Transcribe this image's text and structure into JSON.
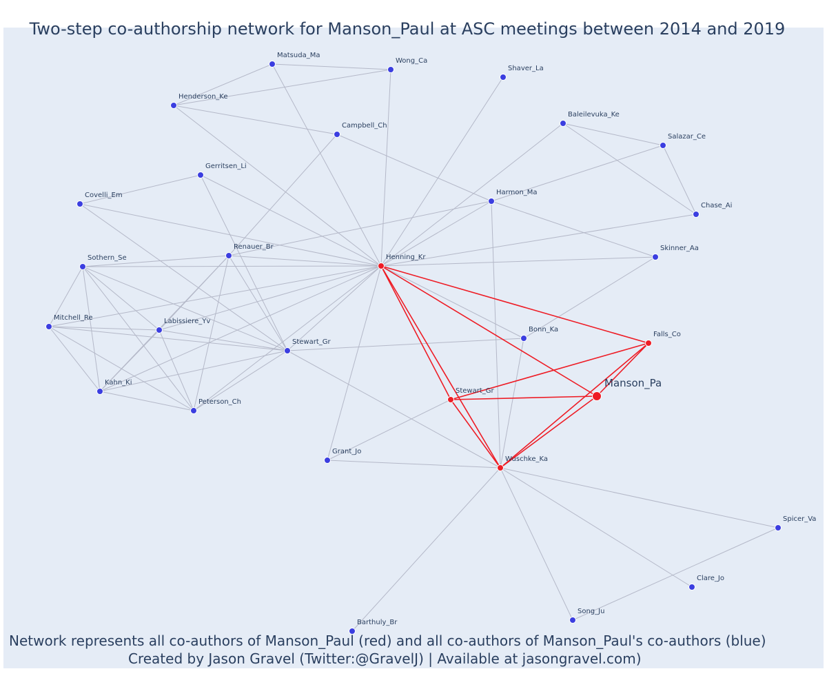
{
  "title": "Two-step co-authorship network for Manson_Paul at ASC meetings between 2014 and 2019",
  "footer": {
    "line1": "Network represents all co-authors of Manson_Paul (red) and all co-authors of Manson_Paul's co-authors (blue)",
    "line2": "Created by Jason Gravel (Twitter:@GravelJ) | Available at jasongravel.com)"
  },
  "colors": {
    "background": "#e5ecf6",
    "coauthor_node": "#ee1c25",
    "second_step_node": "#3b3ee0",
    "coauthor_edge": "#ee1c25",
    "other_edge": "#b4b8c8",
    "text": "#2a3f5f"
  },
  "nodes": [
    {
      "id": "manson",
      "label": "Manson_Pa",
      "group": "focal"
    },
    {
      "id": "henning",
      "label": "Henning_Kr",
      "group": "coauthor"
    },
    {
      "id": "falls",
      "label": "Falls_Co",
      "group": "coauthor"
    },
    {
      "id": "stewart_r",
      "label": "Stewart_Gr",
      "group": "coauthor"
    },
    {
      "id": "wuschke",
      "label": "Wuschke_Ka",
      "group": "coauthor"
    },
    {
      "id": "matsuda",
      "label": "Matsuda_Ma",
      "group": "second"
    },
    {
      "id": "wong",
      "label": "Wong_Ca",
      "group": "second"
    },
    {
      "id": "shaver",
      "label": "Shaver_La",
      "group": "second"
    },
    {
      "id": "henderson",
      "label": "Henderson_Ke",
      "group": "second"
    },
    {
      "id": "campbell",
      "label": "Campbell_Ch",
      "group": "second"
    },
    {
      "id": "baleilevuka",
      "label": "Baleilevuka_Ke",
      "group": "second"
    },
    {
      "id": "salazar",
      "label": "Salazar_Ce",
      "group": "second"
    },
    {
      "id": "gerritsen",
      "label": "Gerritsen_Li",
      "group": "second"
    },
    {
      "id": "covelli",
      "label": "Covelli_Em",
      "group": "second"
    },
    {
      "id": "harmon",
      "label": "Harmon_Ma",
      "group": "second"
    },
    {
      "id": "chase",
      "label": "Chase_Ai",
      "group": "second"
    },
    {
      "id": "renauer",
      "label": "Renauer_Br",
      "group": "second"
    },
    {
      "id": "sothern",
      "label": "Sothern_Se",
      "group": "second"
    },
    {
      "id": "skinner",
      "label": "Skinner_Aa",
      "group": "second"
    },
    {
      "id": "mitchell",
      "label": "Mitchell_Re",
      "group": "second"
    },
    {
      "id": "labissiere",
      "label": "Labissiere_Yv",
      "group": "second"
    },
    {
      "id": "stewart_b",
      "label": "Stewart_Gr",
      "group": "second"
    },
    {
      "id": "bonn",
      "label": "Bonn_Ka",
      "group": "second"
    },
    {
      "id": "kahn",
      "label": "Kahn_Ki",
      "group": "second"
    },
    {
      "id": "peterson",
      "label": "Peterson_Ch",
      "group": "second"
    },
    {
      "id": "grant",
      "label": "Grant_Jo",
      "group": "second"
    },
    {
      "id": "spicer",
      "label": "Spicer_Va",
      "group": "second"
    },
    {
      "id": "clare",
      "label": "Clare_Jo",
      "group": "second"
    },
    {
      "id": "song",
      "label": "Song_Ju",
      "group": "second"
    },
    {
      "id": "barthuly",
      "label": "Barthuly_Br",
      "group": "second"
    }
  ],
  "edges": [
    [
      "manson",
      "henning"
    ],
    [
      "manson",
      "falls"
    ],
    [
      "manson",
      "stewart_r"
    ],
    [
      "manson",
      "wuschke"
    ],
    [
      "henning",
      "falls"
    ],
    [
      "henning",
      "stewart_r"
    ],
    [
      "henning",
      "wuschke"
    ],
    [
      "falls",
      "stewart_r"
    ],
    [
      "falls",
      "wuschke"
    ],
    [
      "stewart_r",
      "wuschke"
    ],
    [
      "matsuda",
      "wong"
    ],
    [
      "matsuda",
      "henderson"
    ],
    [
      "matsuda",
      "henning"
    ],
    [
      "wong",
      "henderson"
    ],
    [
      "wong",
      "henning"
    ],
    [
      "shaver",
      "henning"
    ],
    [
      "henderson",
      "campbell"
    ],
    [
      "henderson",
      "henning"
    ],
    [
      "campbell",
      "harmon"
    ],
    [
      "campbell",
      "renauer"
    ],
    [
      "baleilevuka",
      "salazar"
    ],
    [
      "baleilevuka",
      "chase"
    ],
    [
      "baleilevuka",
      "henning"
    ],
    [
      "salazar",
      "chase"
    ],
    [
      "salazar",
      "harmon"
    ],
    [
      "gerritsen",
      "covelli"
    ],
    [
      "gerritsen",
      "henning"
    ],
    [
      "gerritsen",
      "stewart_b"
    ],
    [
      "covelli",
      "henning"
    ],
    [
      "covelli",
      "stewart_b"
    ],
    [
      "harmon",
      "henning"
    ],
    [
      "harmon",
      "renauer"
    ],
    [
      "harmon",
      "wuschke"
    ],
    [
      "harmon",
      "skinner"
    ],
    [
      "chase",
      "henning"
    ],
    [
      "renauer",
      "henning"
    ],
    [
      "renauer",
      "labissiere"
    ],
    [
      "renauer",
      "kahn"
    ],
    [
      "renauer",
      "peterson"
    ],
    [
      "renauer",
      "stewart_b"
    ],
    [
      "renauer",
      "sothern"
    ],
    [
      "sothern",
      "henning"
    ],
    [
      "sothern",
      "mitchell"
    ],
    [
      "sothern",
      "labissiere"
    ],
    [
      "sothern",
      "kahn"
    ],
    [
      "sothern",
      "peterson"
    ],
    [
      "sothern",
      "stewart_b"
    ],
    [
      "skinner",
      "henning"
    ],
    [
      "skinner",
      "bonn"
    ],
    [
      "mitchell",
      "labissiere"
    ],
    [
      "mitchell",
      "kahn"
    ],
    [
      "mitchell",
      "peterson"
    ],
    [
      "mitchell",
      "stewart_b"
    ],
    [
      "mitchell",
      "henning"
    ],
    [
      "labissiere",
      "kahn"
    ],
    [
      "labissiere",
      "peterson"
    ],
    [
      "labissiere",
      "stewart_b"
    ],
    [
      "labissiere",
      "henning"
    ],
    [
      "stewart_b",
      "henning"
    ],
    [
      "stewart_b",
      "kahn"
    ],
    [
      "stewart_b",
      "peterson"
    ],
    [
      "stewart_b",
      "bonn"
    ],
    [
      "stewart_b",
      "wuschke"
    ],
    [
      "bonn",
      "henning"
    ],
    [
      "bonn",
      "wuschke"
    ],
    [
      "kahn",
      "peterson"
    ],
    [
      "kahn",
      "henning"
    ],
    [
      "peterson",
      "henning"
    ],
    [
      "grant",
      "henning"
    ],
    [
      "grant",
      "wuschke"
    ],
    [
      "grant",
      "stewart_r"
    ],
    [
      "wuschke",
      "spicer"
    ],
    [
      "wuschke",
      "clare"
    ],
    [
      "wuschke",
      "song"
    ],
    [
      "wuschke",
      "barthuly"
    ],
    [
      "spicer",
      "song"
    ]
  ]
}
